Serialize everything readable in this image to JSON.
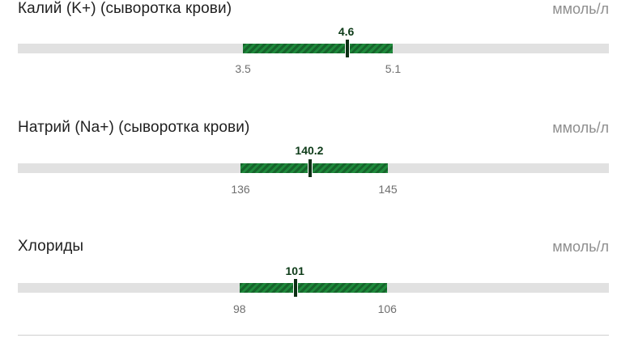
{
  "metrics": [
    {
      "name": "Калий (K+) (сыворотка крови)",
      "unit": "ммоль/л",
      "value": 4.6,
      "value_label": "4.6",
      "low": 3.5,
      "low_label": "3.5",
      "high": 5.1,
      "high_label": "5.1",
      "scale_min": 1.1,
      "scale_max": 7.4
    },
    {
      "name": "Натрий (Na+) (сыворотка крови)",
      "unit": "ммоль/л",
      "value": 140.2,
      "value_label": "140.2",
      "low": 136,
      "low_label": "136",
      "high": 145,
      "high_label": "145",
      "scale_min": 122.4,
      "scale_max": 158.5
    },
    {
      "name": "Хлориды",
      "unit": "ммоль/л",
      "value": 101,
      "value_label": "101",
      "low": 98,
      "low_label": "98",
      "high": 106,
      "high_label": "106",
      "scale_min": 86,
      "scale_max": 118
    }
  ],
  "colors": {
    "range": "#1f8a3c",
    "track": "#e1e1e1",
    "marker": "#0c2f14"
  }
}
